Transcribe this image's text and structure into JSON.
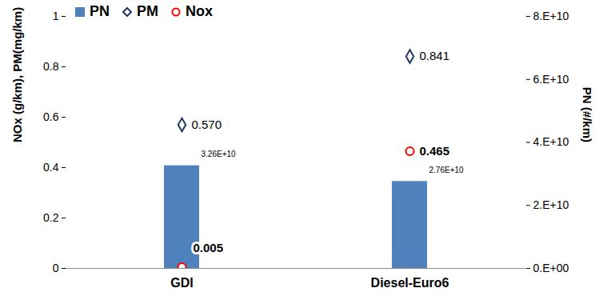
{
  "chart_data": {
    "type": "bar",
    "categories": [
      "GDI",
      "Diesel-Euro6"
    ],
    "ylabel": "NOx (g/km), PM(mg/km)",
    "y2label": "PN (#/km)",
    "ylim": [
      0,
      1
    ],
    "yticks": [
      0,
      0.2,
      0.4,
      0.6,
      0.8,
      1
    ],
    "y2lim": [
      0,
      80000000000
    ],
    "y2ticks": [
      {
        "value": 0,
        "label": "0.E+00"
      },
      {
        "value": 20000000000,
        "label": "2.E+10"
      },
      {
        "value": 40000000000,
        "label": "4.E+10"
      },
      {
        "value": 60000000000,
        "label": "6.E+10"
      },
      {
        "value": 80000000000,
        "label": "8.E+10"
      }
    ],
    "legend": "top-left",
    "data_labels": true,
    "grid": false,
    "series": [
      {
        "name": "PN",
        "type": "bar",
        "axis": "y2",
        "color": "#4F81BD",
        "values": [
          32600000000,
          27600000000
        ],
        "value_labels": [
          "3.26E+10",
          "2.76E+10"
        ]
      },
      {
        "name": "PM",
        "type": "scatter",
        "marker": "diamond",
        "color": "#1F3864",
        "values": [
          0.57,
          0.841
        ],
        "value_labels": [
          "0.570",
          "0.841"
        ]
      },
      {
        "name": "Nox",
        "type": "scatter",
        "marker": "circle",
        "color": "#FF0000",
        "values": [
          0.005,
          0.465
        ],
        "value_labels": [
          "0.005",
          "0.465"
        ]
      }
    ]
  }
}
